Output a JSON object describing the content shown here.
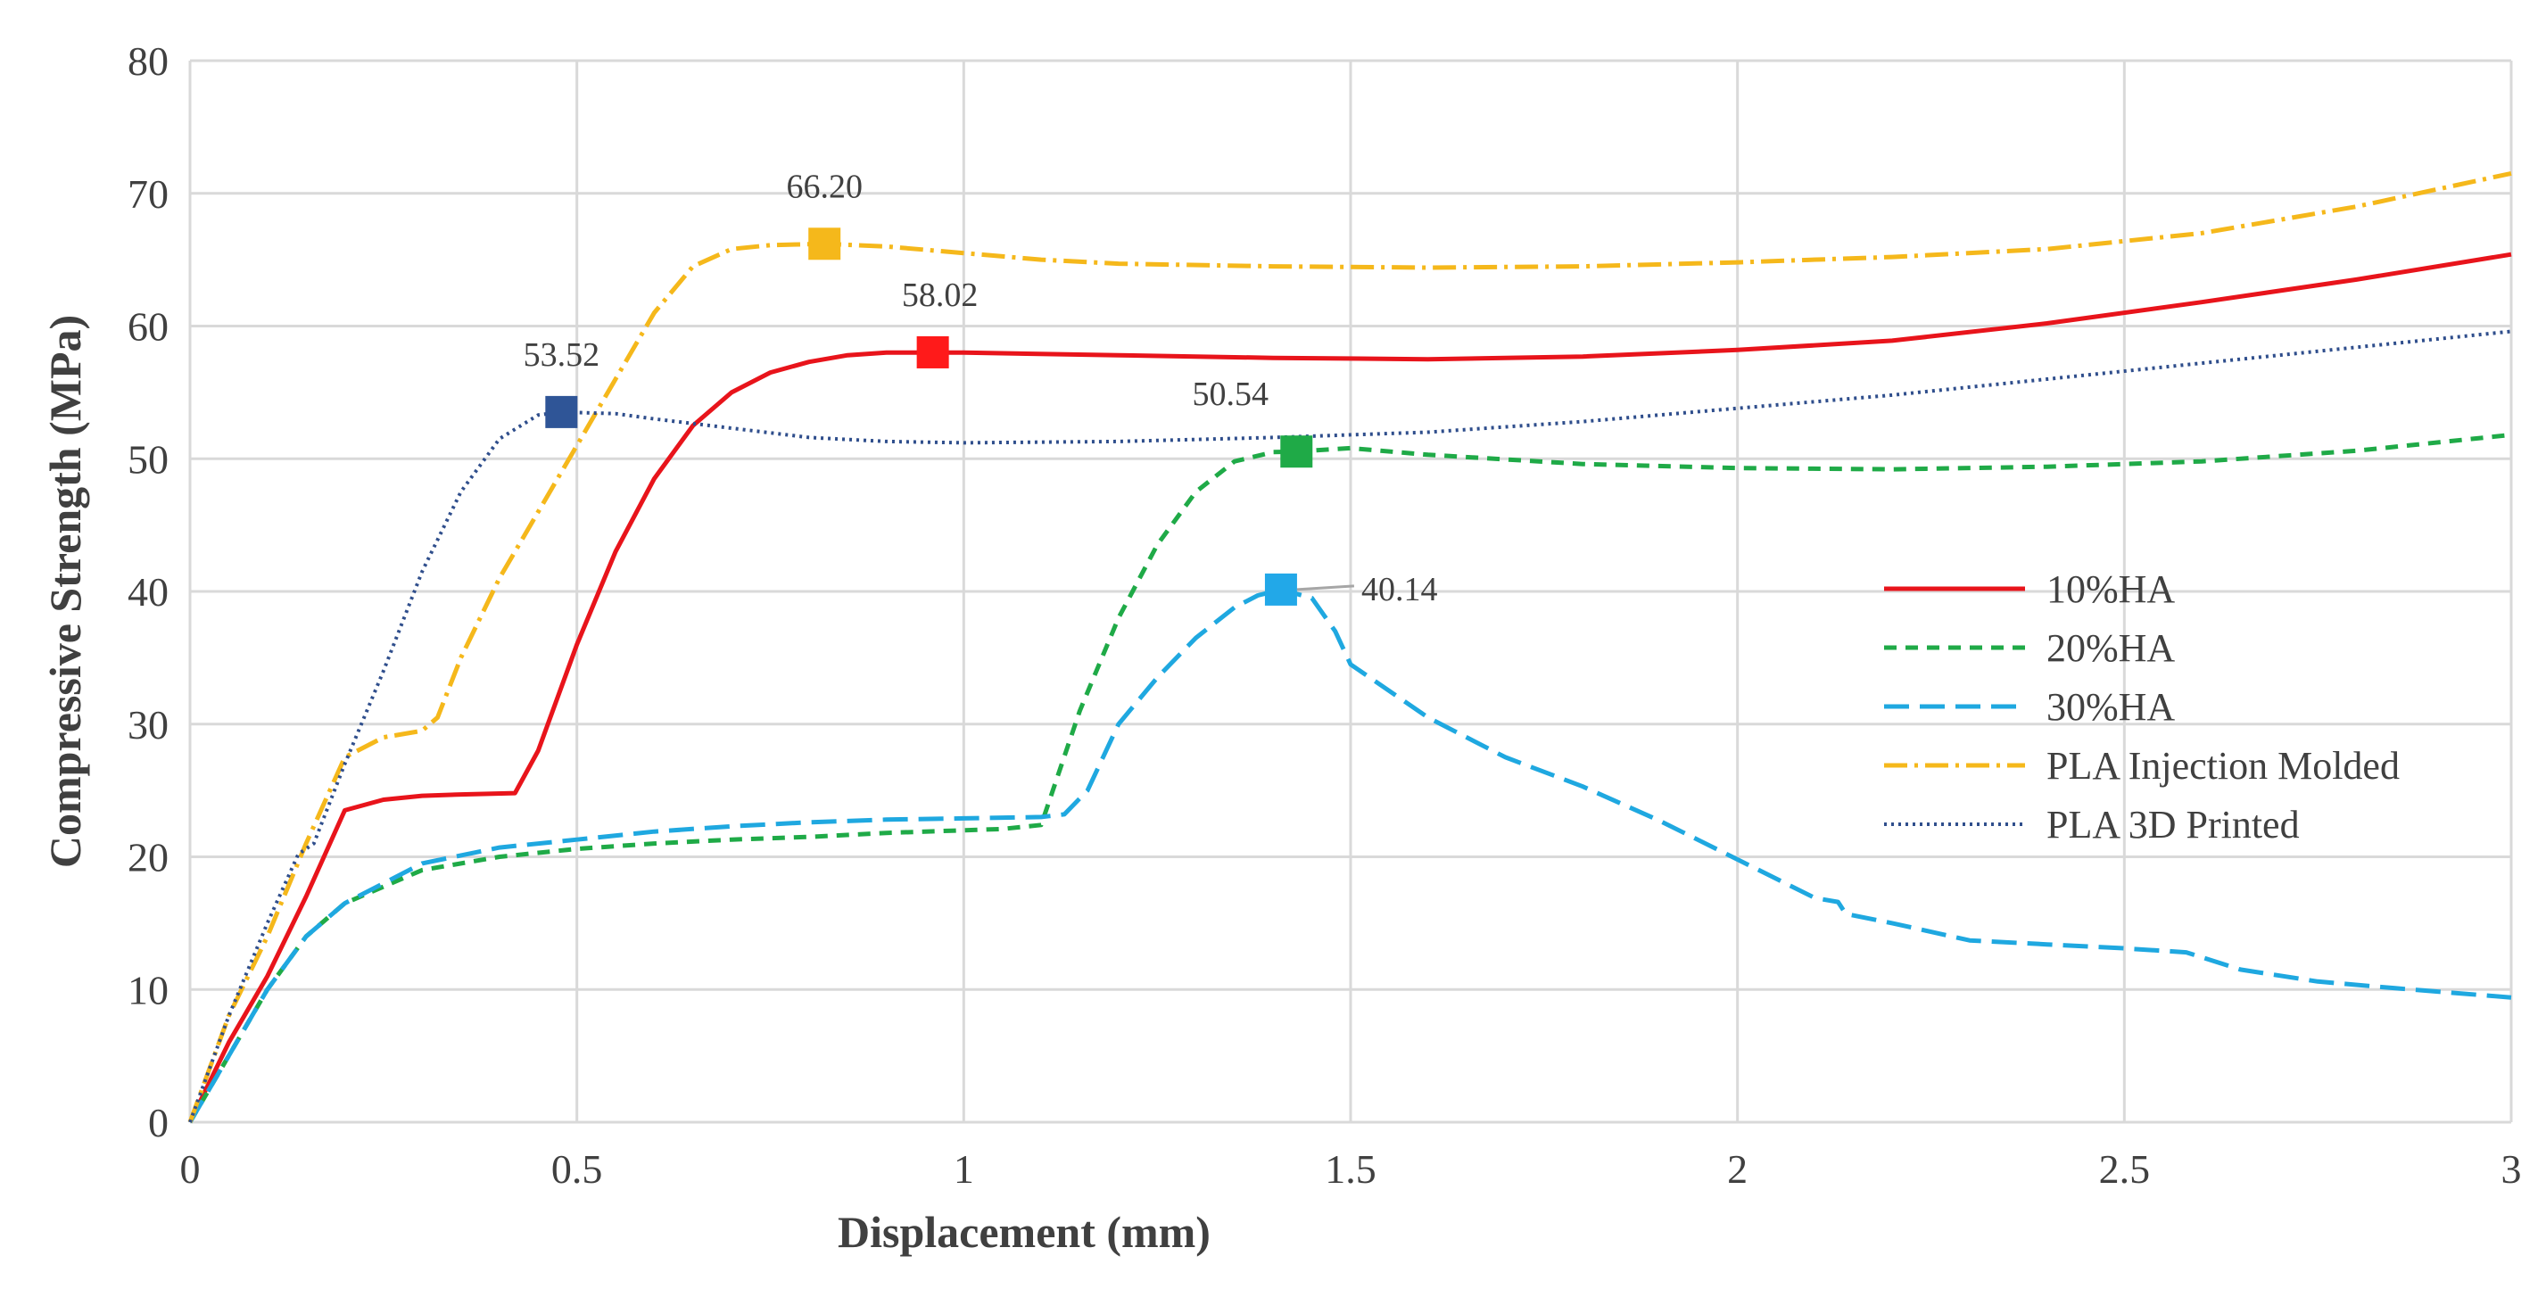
{
  "chart_data": {
    "type": "line",
    "title": "",
    "xlabel": "Displacement (mm)",
    "ylabel": "Compressive Strength (MPa)",
    "xlim": [
      0,
      3
    ],
    "ylim": [
      0,
      80
    ],
    "xticks": [
      "0",
      "0.5",
      "1",
      "1.5",
      "2",
      "2.5",
      "3"
    ],
    "yticks": [
      "0",
      "10",
      "20",
      "30",
      "40",
      "50",
      "60",
      "70",
      "80"
    ],
    "grid": true,
    "legend_position": "right-middle",
    "series": [
      {
        "name": "10%HA",
        "color": "#e8141b",
        "dash": "solid",
        "x": [
          0,
          0.05,
          0.1,
          0.15,
          0.2,
          0.25,
          0.3,
          0.35,
          0.42,
          0.45,
          0.5,
          0.55,
          0.6,
          0.65,
          0.7,
          0.75,
          0.8,
          0.85,
          0.9,
          0.96,
          1.0,
          1.2,
          1.4,
          1.6,
          1.8,
          2.0,
          2.2,
          2.4,
          2.6,
          2.8,
          3.0
        ],
        "y": [
          0,
          6,
          11,
          17,
          23.5,
          24.3,
          24.6,
          24.7,
          24.8,
          28,
          36,
          43,
          48.5,
          52.5,
          55,
          56.5,
          57.3,
          57.8,
          58.0,
          58.0,
          58.0,
          57.8,
          57.6,
          57.5,
          57.7,
          58.2,
          58.9,
          60.2,
          61.8,
          63.5,
          65.4
        ]
      },
      {
        "name": "20%HA",
        "color": "#1faa47",
        "dash": "14 10",
        "x": [
          0,
          0.05,
          0.1,
          0.15,
          0.2,
          0.3,
          0.4,
          0.5,
          0.6,
          0.7,
          0.8,
          0.9,
          1.0,
          1.05,
          1.1,
          1.15,
          1.2,
          1.25,
          1.3,
          1.35,
          1.4,
          1.43,
          1.5,
          1.6,
          1.8,
          2.0,
          2.2,
          2.4,
          2.6,
          2.8,
          3.0
        ],
        "y": [
          0,
          5,
          10,
          14,
          16.5,
          19,
          20,
          20.6,
          21,
          21.3,
          21.5,
          21.8,
          22.0,
          22.1,
          22.4,
          31,
          38,
          43.5,
          47.5,
          49.8,
          50.5,
          50.54,
          50.8,
          50.3,
          49.6,
          49.3,
          49.2,
          49.4,
          49.8,
          50.6,
          51.8
        ]
      },
      {
        "name": "30%HA",
        "color": "#1fa8e0",
        "dash": "28 12",
        "x": [
          0,
          0.05,
          0.1,
          0.15,
          0.2,
          0.3,
          0.4,
          0.5,
          0.6,
          0.7,
          0.8,
          0.9,
          1.0,
          1.1,
          1.13,
          1.16,
          1.2,
          1.25,
          1.3,
          1.35,
          1.38,
          1.41,
          1.45,
          1.48,
          1.5,
          1.6,
          1.7,
          1.8,
          1.9,
          2.0,
          2.1,
          2.13,
          2.14,
          2.2,
          2.3,
          2.4,
          2.5,
          2.58,
          2.65,
          2.75,
          2.85,
          3.0
        ],
        "y": [
          0,
          5,
          10,
          14,
          16.5,
          19.5,
          20.7,
          21.3,
          21.9,
          22.3,
          22.6,
          22.8,
          22.9,
          23.0,
          23.2,
          25,
          30,
          33.5,
          36.5,
          38.8,
          39.7,
          40.14,
          39.5,
          37,
          34.5,
          30.5,
          27.5,
          25.3,
          22.7,
          19.8,
          16.9,
          16.6,
          15.7,
          15.0,
          13.7,
          13.4,
          13.1,
          12.8,
          11.5,
          10.6,
          10.1,
          9.4
        ]
      },
      {
        "name": "PLA Injection Molded",
        "color": "#f5b81b",
        "dash": "26 8 4 8",
        "x": [
          0,
          0.05,
          0.1,
          0.15,
          0.2,
          0.25,
          0.3,
          0.32,
          0.35,
          0.4,
          0.45,
          0.5,
          0.55,
          0.6,
          0.65,
          0.7,
          0.75,
          0.82,
          0.9,
          1.0,
          1.1,
          1.2,
          1.4,
          1.6,
          1.8,
          2.0,
          2.2,
          2.4,
          2.6,
          2.8,
          3.0
        ],
        "y": [
          0,
          8,
          14,
          21,
          27.5,
          29,
          29.5,
          30.5,
          35,
          41,
          46,
          51,
          56,
          61,
          64.5,
          65.8,
          66.1,
          66.2,
          66.0,
          65.5,
          65.0,
          64.7,
          64.5,
          64.4,
          64.5,
          64.8,
          65.2,
          65.8,
          67.0,
          69.0,
          71.5
        ]
      },
      {
        "name": "PLA 3D Printed",
        "color": "#2f4e8c",
        "dash": "3 5",
        "x": [
          0,
          0.05,
          0.1,
          0.14,
          0.16,
          0.2,
          0.25,
          0.3,
          0.35,
          0.4,
          0.45,
          0.48,
          0.55,
          0.6,
          0.7,
          0.8,
          0.9,
          1.0,
          1.2,
          1.4,
          1.6,
          1.8,
          2.0,
          2.2,
          2.4,
          2.6,
          2.8,
          3.0
        ],
        "y": [
          0,
          8,
          15,
          20.2,
          21,
          27,
          34,
          41.5,
          47.5,
          51.5,
          53.3,
          53.52,
          53.4,
          53.0,
          52.3,
          51.6,
          51.3,
          51.2,
          51.3,
          51.6,
          52.0,
          52.8,
          53.8,
          54.8,
          56.0,
          57.2,
          58.4,
          59.6
        ]
      }
    ],
    "markers": [
      {
        "series": "PLA 3D Printed",
        "x": 0.48,
        "y": 53.52,
        "label": "53.52",
        "color": "#2f5597"
      },
      {
        "series": "PLA Injection Molded",
        "x": 0.82,
        "y": 66.2,
        "label": "66.20",
        "color": "#f5b81b"
      },
      {
        "series": "10%HA",
        "x": 0.96,
        "y": 58.02,
        "label": "58.02",
        "color": "#ff1a1a"
      },
      {
        "series": "20%HA",
        "x": 1.43,
        "y": 50.54,
        "label": "50.54",
        "color": "#1faa47"
      },
      {
        "series": "30%HA",
        "x": 1.41,
        "y": 40.14,
        "label": "40.14",
        "color": "#22a8e8"
      }
    ]
  }
}
